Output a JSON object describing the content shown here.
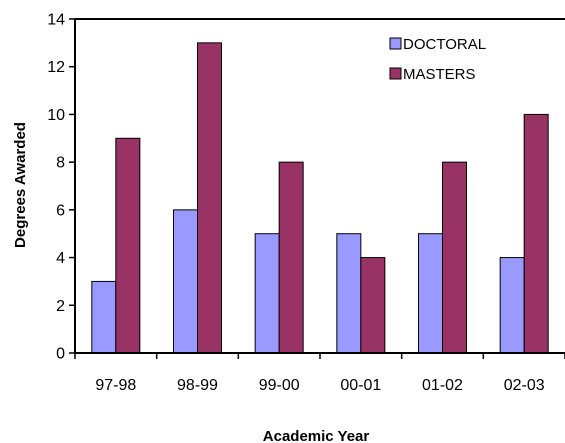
{
  "chart_data": {
    "type": "bar",
    "title": "",
    "xlabel": "Academic Year",
    "ylabel": "Degrees Awarded",
    "categories": [
      "97-98",
      "98-99",
      "99-00",
      "00-01",
      "01-02",
      "02-03"
    ],
    "series": [
      {
        "name": "DOCTORAL",
        "values": [
          3,
          6,
          5,
          5,
          5,
          4
        ],
        "color": "#9999ff"
      },
      {
        "name": "MASTERS",
        "values": [
          9,
          13,
          8,
          4,
          8,
          10
        ],
        "color": "#993366"
      }
    ],
    "ylim": [
      0,
      14
    ],
    "yticks": [
      0,
      2,
      4,
      6,
      8,
      10,
      12,
      14
    ],
    "grid": false,
    "legend_position": "top-right"
  }
}
